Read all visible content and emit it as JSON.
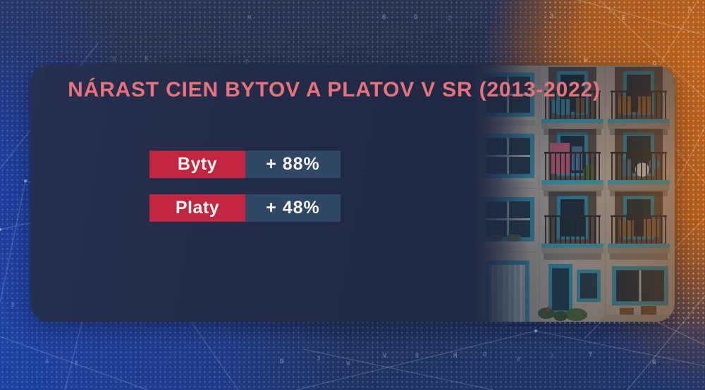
{
  "panel": {
    "title": "NÁRAST CIEN BYTOV A PLATOV V SR (2013-2022)",
    "rows": [
      {
        "label": "Byty",
        "value": "+ 88%"
      },
      {
        "label": "Platy",
        "value": "+ 48%"
      }
    ]
  },
  "chart_data": {
    "type": "table",
    "title": "NÁRAST CIEN BYTOV A PLATOV V SR (2013-2022)",
    "categories": [
      "Byty",
      "Platy"
    ],
    "values": [
      88,
      48
    ],
    "unit": "%",
    "value_labels": [
      "+ 88%",
      "+ 48%"
    ],
    "legend_position": "none",
    "grid": false
  },
  "colors": {
    "accent_red": "#c2253f",
    "value_box_blue": "#2d4765",
    "title_pink": "#e8717c",
    "card_navy": "#1f2944",
    "background_blue": "#1e42a8",
    "background_orange": "#bc611c",
    "photo_teal": "#3aa6bd"
  },
  "background": {
    "glyph_charset": "ROLXBTJWSDIAEKMGVYZ023#"
  }
}
